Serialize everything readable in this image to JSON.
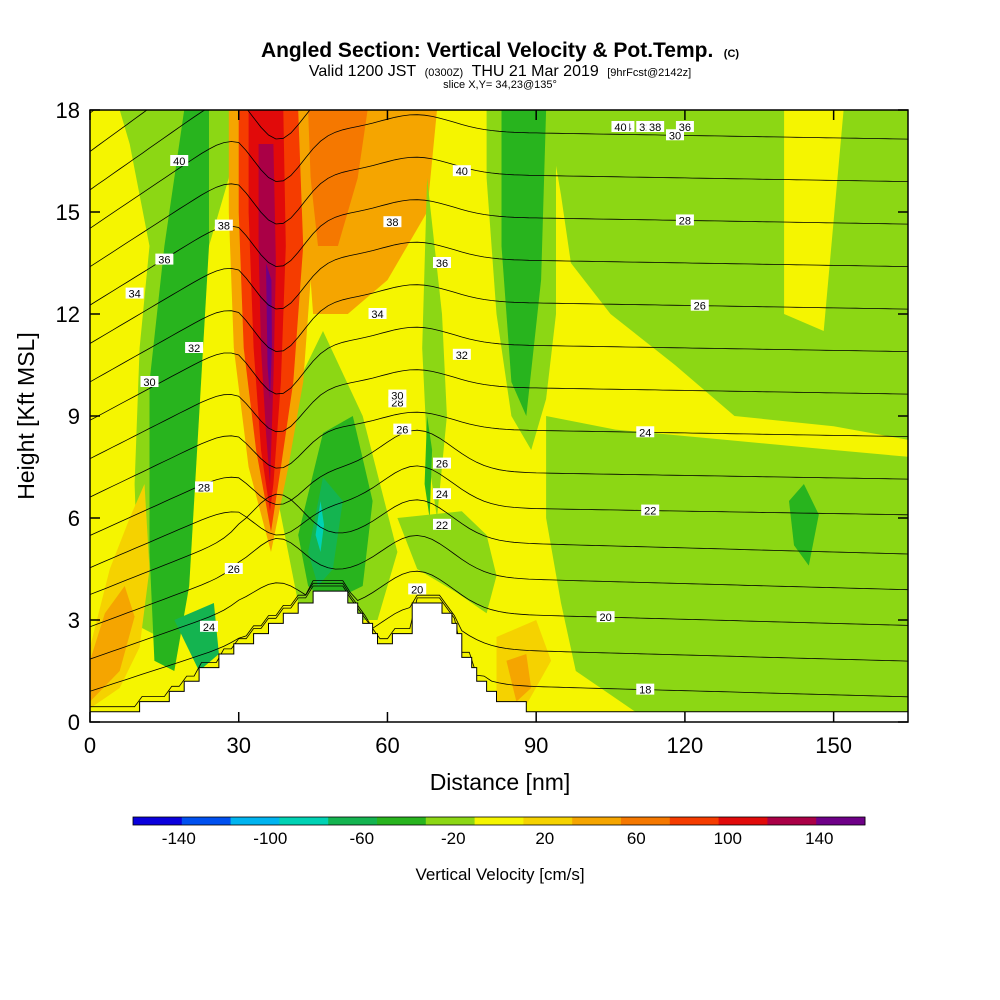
{
  "chart_data": {
    "type": "heatmap",
    "title": "Angled Section: Vertical Velocity & Pot.Temp.",
    "title_mark": "(C)",
    "subtitle_parts": [
      "Valid 1200 JST",
      "(0300Z)",
      "THU 21 Mar 2019",
      "[9hrFcst@2142z]"
    ],
    "slice_label": "slice X,Y= 34,23@135°",
    "xlabel": "Distance [nm]",
    "ylabel": "Height [Kft MSL]",
    "xlim": [
      0,
      165
    ],
    "ylim": [
      0,
      18
    ],
    "xticks": [
      "0",
      "30",
      "60",
      "90",
      "120",
      "150"
    ],
    "yticks": [
      "0",
      "3",
      "6",
      "9",
      "12",
      "15",
      "18"
    ],
    "colorbar": {
      "label": "Vertical Velocity [cm/s]",
      "range": [
        -160,
        160
      ],
      "tick_labels": [
        "-140",
        "-100",
        "-60",
        "-20",
        "20",
        "60",
        "100",
        "140"
      ],
      "colors": [
        "#0a00dc",
        "#0050f0",
        "#00b4f0",
        "#00d2b4",
        "#14b450",
        "#28b41e",
        "#8cd714",
        "#f5f500",
        "#f5d200",
        "#f5a500",
        "#f57800",
        "#f53c00",
        "#e10a0a",
        "#aa0046",
        "#6e0087"
      ]
    },
    "background_color": "#f5f500",
    "velocity_regions": [
      {
        "color": "#8cd714",
        "points": [
          [
            90,
            18
          ],
          [
            128,
            18
          ],
          [
            165,
            18
          ],
          [
            165,
            8.3
          ],
          [
            150,
            8.7
          ],
          [
            130,
            9.0
          ],
          [
            118,
            10.5
          ],
          [
            105,
            12.0
          ],
          [
            97,
            13.5
          ],
          [
            95,
            15.5
          ],
          [
            93,
            17.2
          ]
        ]
      },
      {
        "color": "#8cd714",
        "points": [
          [
            92,
            9
          ],
          [
            106,
            8.6
          ],
          [
            128,
            8.3
          ],
          [
            150,
            8.0
          ],
          [
            165,
            7.8
          ],
          [
            165,
            0.3
          ],
          [
            110,
            0.3
          ],
          [
            98,
            1.5
          ],
          [
            95,
            3.5
          ],
          [
            92,
            6
          ]
        ]
      },
      {
        "color": "#f5f500",
        "points": [
          [
            140,
            18
          ],
          [
            152,
            18
          ],
          [
            148,
            11.5
          ],
          [
            140,
            12
          ]
        ]
      },
      {
        "color": "#28b41e",
        "points": [
          [
            141,
            6.5
          ],
          [
            144,
            7
          ],
          [
            147,
            6.1
          ],
          [
            145,
            4.6
          ],
          [
            142,
            5.2
          ]
        ]
      },
      {
        "color": "#8cd714",
        "points": [
          [
            6,
            18
          ],
          [
            30,
            18
          ],
          [
            28,
            16
          ],
          [
            22,
            13
          ],
          [
            18,
            9
          ],
          [
            16,
            5
          ],
          [
            14,
            2.5
          ],
          [
            10,
            2.8
          ],
          [
            9,
            7
          ],
          [
            10,
            11
          ],
          [
            12,
            14
          ],
          [
            8,
            17
          ]
        ]
      },
      {
        "color": "#28b41e",
        "points": [
          [
            19,
            18
          ],
          [
            24,
            18
          ],
          [
            24,
            14
          ],
          [
            22,
            9
          ],
          [
            20,
            4
          ],
          [
            17,
            1.5
          ],
          [
            13,
            1.8
          ],
          [
            12,
            5
          ],
          [
            12,
            10
          ],
          [
            15,
            14
          ]
        ]
      },
      {
        "color": "#14b450",
        "points": [
          [
            17,
            3
          ],
          [
            25,
            3.5
          ],
          [
            26,
            2
          ],
          [
            22,
            1.5
          ]
        ]
      },
      {
        "color": "#8cd714",
        "points": [
          [
            37,
            7.2
          ],
          [
            42,
            10.0
          ],
          [
            47,
            11.5
          ],
          [
            55,
            9.0
          ],
          [
            62,
            5.0
          ],
          [
            58,
            3.0
          ],
          [
            50,
            3.0
          ],
          [
            42,
            3.5
          ]
        ]
      },
      {
        "color": "#28b41e",
        "points": [
          [
            42,
            5.5
          ],
          [
            47,
            8.5
          ],
          [
            53,
            9.0
          ],
          [
            57,
            6.5
          ],
          [
            55,
            4.0
          ],
          [
            48,
            3.5
          ],
          [
            44,
            4.0
          ]
        ]
      },
      {
        "color": "#14b450",
        "points": [
          [
            44,
            5
          ],
          [
            47,
            7.2
          ],
          [
            51,
            6.5
          ],
          [
            49,
            4.5
          ],
          [
            46,
            4.0
          ]
        ]
      },
      {
        "color": "#00d2b4",
        "points": [
          [
            45.5,
            5.5
          ],
          [
            46.5,
            6.5
          ],
          [
            47.2,
            5.8
          ],
          [
            46.5,
            5.0
          ]
        ]
      },
      {
        "color": "#f5a500",
        "points": [
          [
            42,
            18
          ],
          [
            70,
            18
          ],
          [
            68,
            15
          ],
          [
            60,
            13
          ],
          [
            52,
            12
          ],
          [
            45,
            12
          ]
        ]
      },
      {
        "color": "#f57800",
        "points": [
          [
            43,
            18
          ],
          [
            56,
            18
          ],
          [
            54,
            16
          ],
          [
            50,
            14
          ],
          [
            46,
            14
          ]
        ]
      },
      {
        "color": "#f5a500",
        "points": [
          [
            28,
            18
          ],
          [
            44,
            18
          ],
          [
            45,
            14
          ],
          [
            43,
            10
          ],
          [
            40,
            7.5
          ],
          [
            36.5,
            5.0
          ],
          [
            32,
            7.5
          ],
          [
            29,
            11
          ],
          [
            28,
            15
          ]
        ]
      },
      {
        "color": "#f53c00",
        "points": [
          [
            30,
            18
          ],
          [
            42,
            18
          ],
          [
            43,
            14
          ],
          [
            41,
            10
          ],
          [
            38.5,
            7.5
          ],
          [
            36.5,
            5.6
          ],
          [
            33.5,
            8
          ],
          [
            31,
            11
          ],
          [
            30,
            15
          ]
        ]
      },
      {
        "color": "#e10a0a",
        "points": [
          [
            32,
            18
          ],
          [
            39,
            18
          ],
          [
            39.5,
            14
          ],
          [
            38.5,
            10
          ],
          [
            37,
            7
          ],
          [
            36.3,
            6.2
          ],
          [
            34.5,
            8
          ],
          [
            33,
            11
          ],
          [
            32,
            15
          ]
        ]
      },
      {
        "color": "#aa0046",
        "points": [
          [
            34,
            17
          ],
          [
            37,
            17
          ],
          [
            37.5,
            13.5
          ],
          [
            37,
            10
          ],
          [
            36.3,
            7
          ],
          [
            35.5,
            8.5
          ],
          [
            34.5,
            11
          ],
          [
            34,
            14
          ]
        ]
      },
      {
        "color": "#6e0087",
        "points": [
          [
            35.5,
            13.5
          ],
          [
            36.6,
            13
          ],
          [
            36.7,
            11
          ],
          [
            36.3,
            9.5
          ],
          [
            35.8,
            10.5
          ]
        ]
      },
      {
        "color": "#8cd714",
        "points": [
          [
            68,
            16
          ],
          [
            71,
            12
          ],
          [
            72,
            9
          ],
          [
            70,
            6
          ],
          [
            68,
            8
          ],
          [
            67,
            11
          ]
        ]
      },
      {
        "color": "#28b41e",
        "points": [
          [
            68,
            9
          ],
          [
            69,
            8
          ],
          [
            68.5,
            6
          ],
          [
            67.5,
            7
          ]
        ]
      },
      {
        "color": "#8cd714",
        "points": [
          [
            80,
            18
          ],
          [
            94,
            18
          ],
          [
            94,
            12
          ],
          [
            92,
            9.5
          ],
          [
            89,
            8
          ],
          [
            85,
            9
          ],
          [
            82,
            12
          ],
          [
            80,
            16
          ]
        ]
      },
      {
        "color": "#28b41e",
        "points": [
          [
            83,
            18
          ],
          [
            92,
            18
          ],
          [
            91,
            13
          ],
          [
            88,
            9
          ],
          [
            85,
            10
          ],
          [
            83,
            14
          ]
        ]
      },
      {
        "color": "#8cd714",
        "points": [
          [
            62,
            6
          ],
          [
            75,
            6.2
          ],
          [
            80,
            5.5
          ],
          [
            82,
            4.3
          ],
          [
            80,
            3.2
          ],
          [
            74,
            3.8
          ],
          [
            66,
            4.5
          ]
        ]
      },
      {
        "color": "#f5d200",
        "points": [
          [
            0,
            2.2
          ],
          [
            4,
            4.5
          ],
          [
            8,
            6
          ],
          [
            11,
            7
          ],
          [
            12,
            4.5
          ],
          [
            10,
            2.2
          ],
          [
            6,
            1.0
          ],
          [
            0,
            0.4
          ]
        ]
      },
      {
        "color": "#f5a500",
        "points": [
          [
            0,
            1.8
          ],
          [
            3,
            3.2
          ],
          [
            7,
            4.0
          ],
          [
            9,
            3.1
          ],
          [
            6,
            1.5
          ],
          [
            0,
            0.6
          ]
        ]
      },
      {
        "color": "#f5d200",
        "points": [
          [
            82,
            2.5
          ],
          [
            90,
            3.0
          ],
          [
            93,
            1.8
          ],
          [
            88,
            0.5
          ],
          [
            82,
            0.6
          ]
        ]
      },
      {
        "color": "#f5a500",
        "points": [
          [
            84,
            1.8
          ],
          [
            88,
            2.0
          ],
          [
            89,
            1.0
          ],
          [
            86,
            0.6
          ]
        ]
      }
    ],
    "terrain": [
      [
        0,
        0.3
      ],
      [
        10,
        0.3
      ],
      [
        10,
        0.6
      ],
      [
        16,
        0.6
      ],
      [
        16,
        0.9
      ],
      [
        19,
        0.9
      ],
      [
        19,
        1.2
      ],
      [
        22,
        1.2
      ],
      [
        22,
        1.6
      ],
      [
        26,
        1.6
      ],
      [
        26,
        2.0
      ],
      [
        29,
        2.0
      ],
      [
        29,
        2.3
      ],
      [
        33,
        2.3
      ],
      [
        33,
        2.6
      ],
      [
        36,
        2.6
      ],
      [
        36,
        2.9
      ],
      [
        39,
        2.9
      ],
      [
        39,
        3.2
      ],
      [
        42,
        3.2
      ],
      [
        42,
        3.5
      ],
      [
        45,
        3.5
      ],
      [
        45,
        3.85
      ],
      [
        52,
        3.85
      ],
      [
        52,
        3.5
      ],
      [
        54,
        3.5
      ],
      [
        54,
        3.2
      ],
      [
        55,
        3.2
      ],
      [
        55,
        2.9
      ],
      [
        57,
        2.9
      ],
      [
        57,
        2.6
      ],
      [
        58,
        2.6
      ],
      [
        58,
        2.3
      ],
      [
        61,
        2.3
      ],
      [
        61,
        2.6
      ],
      [
        65,
        2.6
      ],
      [
        65,
        3.5
      ],
      [
        71,
        3.5
      ],
      [
        71,
        3.2
      ],
      [
        73,
        3.2
      ],
      [
        73,
        2.9
      ],
      [
        74,
        2.9
      ],
      [
        74,
        2.6
      ],
      [
        75,
        2.6
      ],
      [
        75,
        1.9
      ],
      [
        77,
        1.9
      ],
      [
        77,
        1.6
      ],
      [
        78,
        1.6
      ],
      [
        78,
        1.2
      ],
      [
        80,
        1.2
      ],
      [
        80,
        0.9
      ],
      [
        82,
        0.9
      ],
      [
        82,
        0.6
      ],
      [
        88,
        0.6
      ],
      [
        88,
        0.3
      ],
      [
        165,
        0.3
      ],
      [
        165,
        0
      ],
      [
        0,
        0
      ]
    ],
    "theta_contours": [
      {
        "offset": 0.0,
        "label": "18",
        "label_x": 112
      },
      {
        "offset": 0.8,
        "label": "20",
        "label_x": 104
      },
      {
        "offset": 1.6,
        "label": "22",
        "label_x": 113
      },
      {
        "offset": 2.4,
        "label": "24",
        "label_x": 112
      },
      {
        "offset": 3.2,
        "label": "26",
        "label_x": 123
      },
      {
        "offset": 4.0,
        "label": "28",
        "label_x": 120
      },
      {
        "offset": 4.8,
        "label": "30",
        "label_x": 118
      },
      {
        "offset": 5.6,
        "label": "32",
        "label_x": 112
      },
      {
        "offset": 6.4,
        "label": "34",
        "label_x": 108
      },
      {
        "offset": 7.2,
        "label": "36",
        "label_x": 120
      },
      {
        "offset": 8.0,
        "label": "38",
        "label_x": 114
      },
      {
        "offset": 8.8,
        "label": "40",
        "label_x": 107
      }
    ],
    "theta_labels_left": [
      {
        "label": "24",
        "x": 24,
        "y": 2.8
      },
      {
        "label": "26",
        "x": 29,
        "y": 4.5
      },
      {
        "label": "28",
        "x": 23,
        "y": 6.9
      },
      {
        "label": "30",
        "x": 12,
        "y": 10.0
      },
      {
        "label": "32",
        "x": 21,
        "y": 11.0
      },
      {
        "label": "34",
        "x": 9,
        "y": 12.6
      },
      {
        "label": "36",
        "x": 15,
        "y": 13.6
      },
      {
        "label": "38",
        "x": 27,
        "y": 14.6
      },
      {
        "label": "40",
        "x": 18,
        "y": 16.5
      },
      {
        "label": "26",
        "x": 63,
        "y": 8.6
      },
      {
        "label": "28",
        "x": 62,
        "y": 9.4
      },
      {
        "label": "30",
        "x": 62,
        "y": 9.6
      },
      {
        "label": "32",
        "x": 75,
        "y": 10.8
      },
      {
        "label": "34",
        "x": 58,
        "y": 12.0
      },
      {
        "label": "36",
        "x": 71,
        "y": 13.5
      },
      {
        "label": "38",
        "x": 61,
        "y": 14.7
      },
      {
        "label": "40",
        "x": 75,
        "y": 16.2
      },
      {
        "label": "26",
        "x": 71,
        "y": 7.6
      },
      {
        "label": "24",
        "x": 71,
        "y": 6.7
      },
      {
        "label": "22",
        "x": 71,
        "y": 5.8
      },
      {
        "label": "20",
        "x": 66,
        "y": 3.9
      }
    ]
  }
}
